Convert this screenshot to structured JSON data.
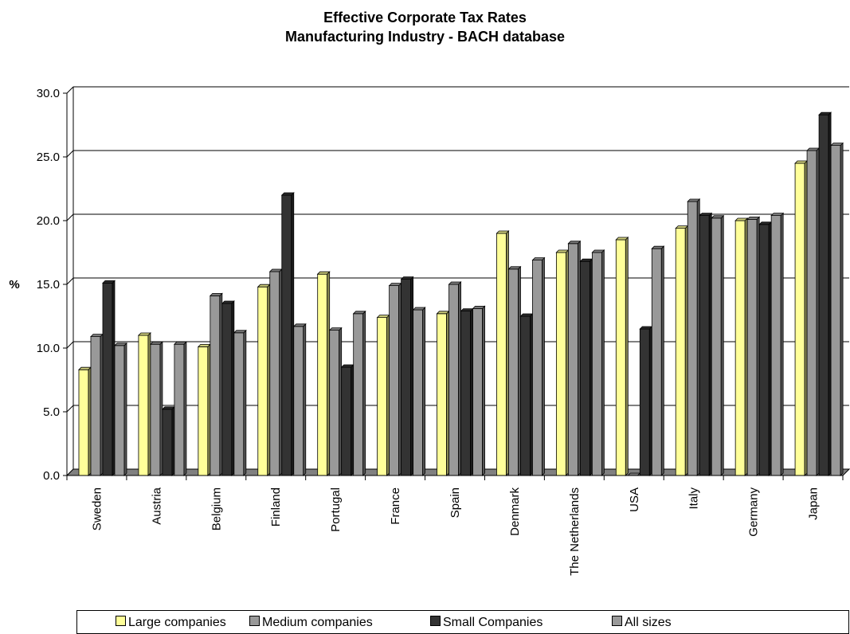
{
  "chart_data": {
    "type": "bar",
    "title": "Effective Corporate Tax Rates",
    "subtitle": "Manufacturing Industry - BACH database",
    "ylabel": "%",
    "xlabel": "",
    "ylim": [
      0,
      30
    ],
    "yticks": [
      "0.0",
      "5.0",
      "10.0",
      "15.0",
      "20.0",
      "25.0",
      "30.0"
    ],
    "grid": true,
    "legend": "bottom",
    "categories": [
      "Sweden",
      "Austria",
      "Belgium",
      "Finland",
      "Portugal",
      "France",
      "Spain",
      "Denmark",
      "The Netherlands",
      "USA",
      "Italy",
      "Germany",
      "Japan"
    ],
    "series": [
      {
        "name": "Large companies",
        "color": "#ffff99",
        "values": [
          8.3,
          11.0,
          10.1,
          14.8,
          15.8,
          12.4,
          12.7,
          19.0,
          17.5,
          18.5,
          19.4,
          20.0,
          24.5
        ]
      },
      {
        "name": "Medium companies",
        "color": "#999999",
        "values": [
          10.9,
          10.3,
          14.1,
          16.0,
          11.4,
          14.9,
          15.0,
          16.2,
          18.2,
          0.0,
          21.5,
          20.1,
          25.5
        ]
      },
      {
        "name": "Small Companies",
        "color": "#333333",
        "values": [
          15.1,
          5.2,
          13.5,
          22.0,
          8.5,
          15.4,
          12.9,
          12.5,
          16.8,
          11.5,
          20.4,
          19.7,
          28.3
        ]
      },
      {
        "name": "All sizes",
        "color": "#999999",
        "values": [
          10.2,
          10.3,
          11.2,
          11.7,
          12.7,
          13.0,
          13.1,
          16.9,
          17.5,
          17.8,
          20.2,
          20.4,
          25.9
        ]
      }
    ]
  }
}
